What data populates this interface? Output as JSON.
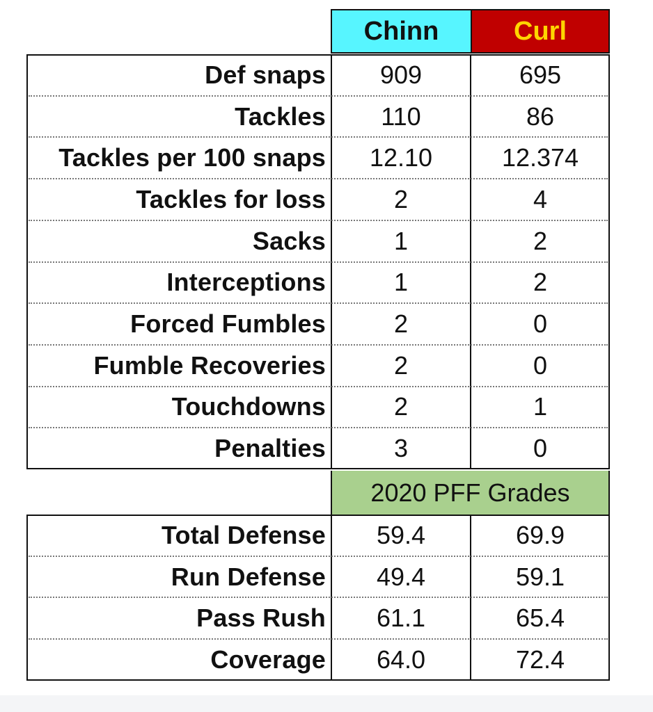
{
  "players": [
    {
      "name": "Chinn",
      "color": "#57f5ff",
      "text_color": "#111111"
    },
    {
      "name": "Curl",
      "color": "#c00000",
      "text_color": "#ffd500"
    }
  ],
  "stats": [
    {
      "label": "Def snaps",
      "values": [
        "909",
        "695"
      ]
    },
    {
      "label": "Tackles",
      "values": [
        "110",
        "86"
      ]
    },
    {
      "label": "Tackles per 100 snaps",
      "values": [
        "12.10",
        "12.374"
      ]
    },
    {
      "label": "Tackles for loss",
      "values": [
        "2",
        "4"
      ]
    },
    {
      "label": "Sacks",
      "values": [
        "1",
        "2"
      ]
    },
    {
      "label": "Interceptions",
      "values": [
        "1",
        "2"
      ]
    },
    {
      "label": "Forced Fumbles",
      "values": [
        "2",
        "0"
      ]
    },
    {
      "label": "Fumble Recoveries",
      "values": [
        "2",
        "0"
      ]
    },
    {
      "label": "Touchdowns",
      "values": [
        "2",
        "1"
      ]
    },
    {
      "label": "Penalties",
      "values": [
        "3",
        "0"
      ]
    }
  ],
  "grades_header": {
    "label": "2020 PFF Grades",
    "color": "#a9d08e"
  },
  "grades": [
    {
      "label": "Total Defense",
      "values": [
        "59.4",
        "69.9"
      ]
    },
    {
      "label": "Run Defense",
      "values": [
        "49.4",
        "59.1"
      ]
    },
    {
      "label": "Pass Rush",
      "values": [
        "61.1",
        "65.4"
      ]
    },
    {
      "label": "Coverage",
      "values": [
        "64.0",
        "72.4"
      ]
    }
  ]
}
